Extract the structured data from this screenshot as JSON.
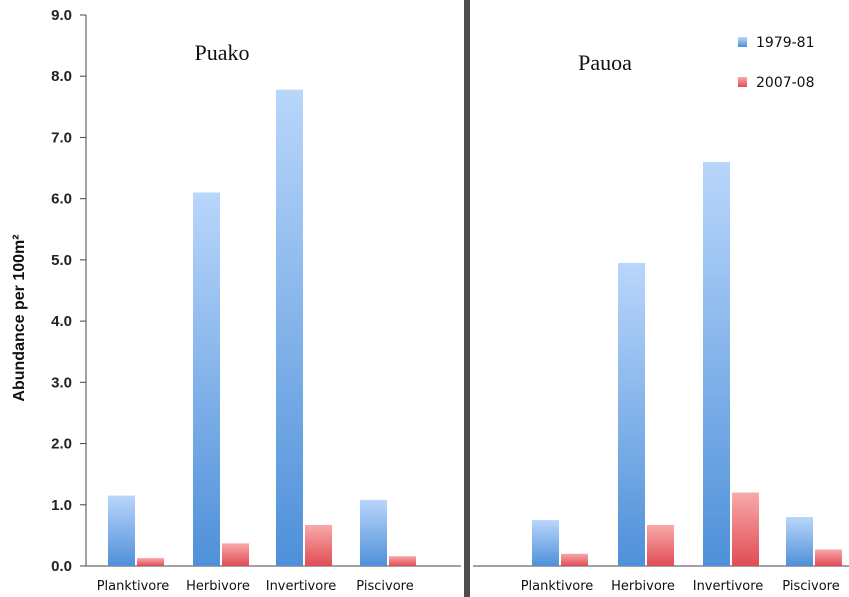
{
  "chart_data": {
    "type": "bar",
    "ylabel": "Abundance per 100m²",
    "ylim": [
      0,
      9
    ],
    "yticks": [
      "0.0",
      "1.0",
      "2.0",
      "3.0",
      "4.0",
      "5.0",
      "6.0",
      "7.0",
      "8.0",
      "9.0"
    ],
    "grid": false,
    "legend_position": "top-right",
    "colors": {
      "1979-81": "#5b9be0",
      "2007-08": "#e8595f",
      "axis": "#444444",
      "divider": "#4d4d4d"
    },
    "legend": [
      "1979-81",
      "2007-08"
    ],
    "panels": [
      {
        "title": "Puako",
        "categories": [
          "Planktivore",
          "Herbivore",
          "Invertivore",
          "Piscivore"
        ],
        "series": [
          {
            "name": "1979-81",
            "values": [
              1.15,
              6.1,
              7.78,
              1.08
            ]
          },
          {
            "name": "2007-08",
            "values": [
              0.13,
              0.37,
              0.67,
              0.16
            ]
          }
        ]
      },
      {
        "title": "Pauoa",
        "categories": [
          "Planktivore",
          "Herbivore",
          "Invertivore",
          "Piscivore"
        ],
        "series": [
          {
            "name": "1979-81",
            "values": [
              0.75,
              4.95,
              6.6,
              0.8
            ]
          },
          {
            "name": "2007-08",
            "values": [
              0.2,
              0.67,
              1.2,
              0.27
            ]
          }
        ]
      }
    ]
  }
}
